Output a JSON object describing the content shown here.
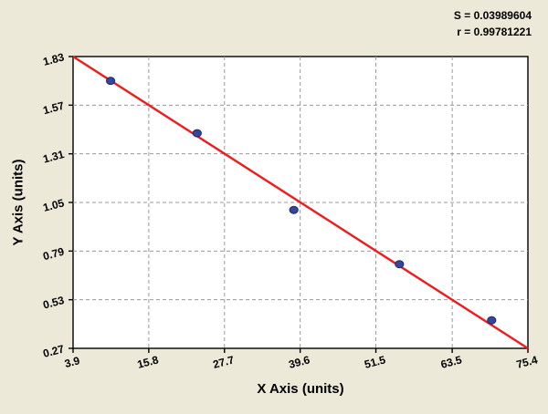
{
  "chart_data": {
    "type": "scatter",
    "title": "",
    "xlabel": "X Axis (units)",
    "ylabel": "Y Axis (units)",
    "xlim": [
      3.9,
      75.4
    ],
    "ylim": [
      0.27,
      1.83
    ],
    "x_ticks": [
      3.9,
      15.8,
      27.7,
      39.6,
      51.5,
      63.5,
      75.4
    ],
    "y_ticks": [
      0.27,
      0.53,
      0.79,
      1.05,
      1.31,
      1.57,
      1.83
    ],
    "grid": true,
    "legend": "none",
    "points": [
      {
        "x": 9.8,
        "y": 1.7
      },
      {
        "x": 23.4,
        "y": 1.42
      },
      {
        "x": 38.6,
        "y": 1.01
      },
      {
        "x": 55.2,
        "y": 0.72
      },
      {
        "x": 69.7,
        "y": 0.42
      }
    ],
    "regression_line": {
      "x1": 3.9,
      "y1": 1.83,
      "x2": 75.4,
      "y2": 0.27
    },
    "annotations": {
      "s_label": "S = 0.03989604",
      "r_label": "r = 0.99781221"
    },
    "colors": {
      "background": "#ece9d8",
      "plot_background": "#ffffff",
      "grid": "#999999",
      "axis": "#000000",
      "line": "#ee1c1c",
      "point_fill": "#35479c",
      "point_stroke": "#1c2a66"
    }
  }
}
